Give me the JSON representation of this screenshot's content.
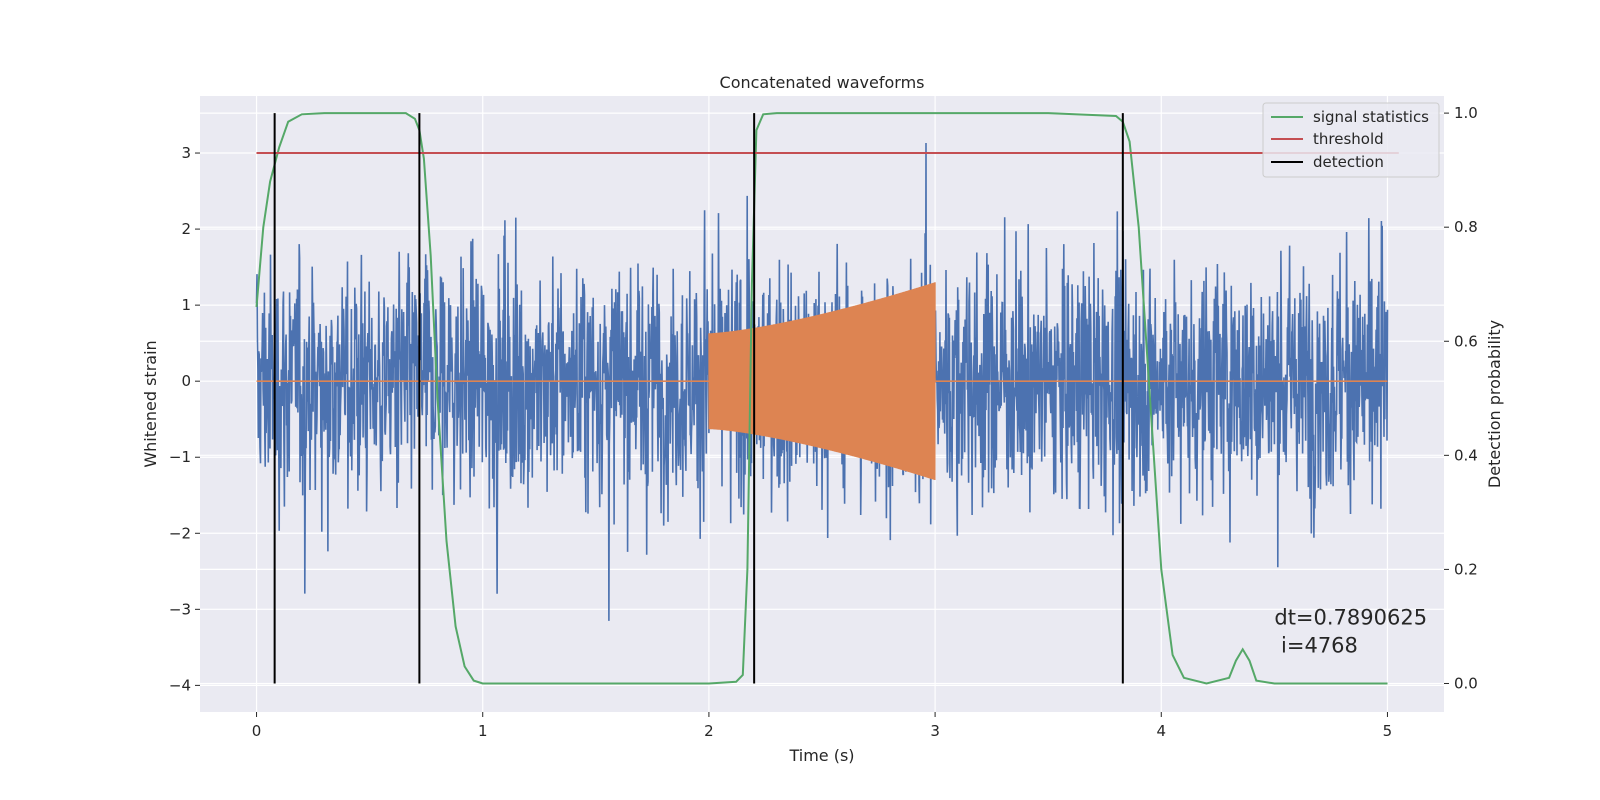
{
  "chart_data": {
    "type": "line",
    "title": "Concatenated waveforms",
    "xlabel": "Time (s)",
    "ylabel": "Whitened strain",
    "ylabel_right": "Detection probability",
    "xlim": [
      -0.25,
      5.25
    ],
    "ylim": [
      -4.35,
      3.75
    ],
    "ylim_right": [
      -0.05,
      1.03
    ],
    "xticks": [
      0,
      1,
      2,
      3,
      4,
      5
    ],
    "yticks": [
      3,
      2,
      1,
      0,
      -1,
      -2,
      -3,
      -4
    ],
    "yticks_right": [
      1.0,
      0.8,
      0.6,
      0.4,
      0.2,
      0.0
    ],
    "grid": true,
    "legend_position": "top-right",
    "legend": [
      "signal statistics",
      "threshold",
      "detection"
    ],
    "series": [
      {
        "name": "signal statistics",
        "axis": "right",
        "color": "#55a868",
        "x": [
          0,
          0.03,
          0.06,
          0.1,
          0.14,
          0.2,
          0.3,
          0.4,
          0.5,
          0.6,
          0.66,
          0.7,
          0.72,
          0.74,
          0.77,
          0.8,
          0.84,
          0.88,
          0.92,
          0.96,
          1.0,
          1.5,
          2.0,
          2.12,
          2.15,
          2.17,
          2.19,
          2.21,
          2.24,
          2.3,
          2.5,
          3.0,
          3.5,
          3.8,
          3.83,
          3.86,
          3.9,
          3.95,
          4.0,
          4.05,
          4.1,
          4.2,
          4.3,
          4.33,
          4.36,
          4.39,
          4.42,
          4.5,
          5.0
        ],
        "values": [
          0.66,
          0.8,
          0.88,
          0.94,
          0.985,
          0.998,
          1.0,
          1.0,
          1.0,
          1.0,
          1.0,
          0.99,
          0.97,
          0.92,
          0.75,
          0.5,
          0.25,
          0.1,
          0.03,
          0.005,
          0.0,
          0.0,
          0.0,
          0.003,
          0.015,
          0.2,
          0.7,
          0.97,
          0.998,
          1.0,
          1.0,
          1.0,
          1.0,
          0.995,
          0.985,
          0.95,
          0.8,
          0.5,
          0.2,
          0.05,
          0.01,
          0.0,
          0.01,
          0.04,
          0.06,
          0.04,
          0.005,
          0.0,
          0.0
        ]
      },
      {
        "name": "threshold",
        "axis": "left",
        "color": "#c44e52",
        "x": [
          0,
          5.05
        ],
        "values": [
          3.0,
          3.0
        ]
      }
    ],
    "noise": {
      "axis": "left",
      "color": "#4c72b0",
      "x_range": [
        0,
        5.0
      ]
    },
    "chirp": {
      "axis": "left",
      "color": "#dd8452",
      "x_range": [
        2.0,
        3.0
      ],
      "amplitude_start": 0.63,
      "amplitude_end": 1.3
    },
    "detections": {
      "name": "detection",
      "color": "#000000",
      "x": [
        0.08,
        0.72,
        2.2,
        3.83
      ],
      "range": [
        0.0,
        1.0
      ]
    },
    "annotation": {
      "lines": [
        "dt=0.7890625",
        " i=4768"
      ],
      "x": 4.5,
      "y": -3.2
    }
  }
}
